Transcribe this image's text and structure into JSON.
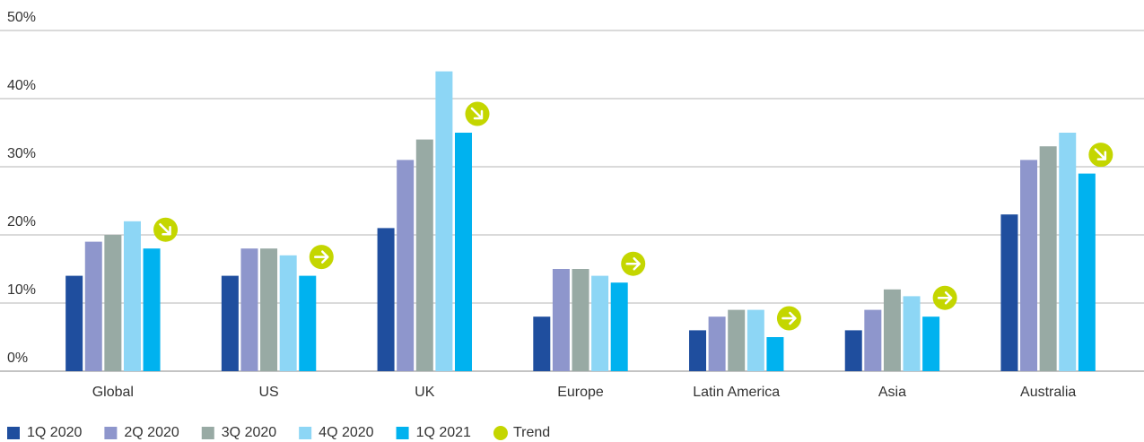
{
  "chart_data": {
    "type": "bar",
    "categories": [
      "Global",
      "US",
      "UK",
      "Europe",
      "Latin America",
      "Asia",
      "Australia"
    ],
    "series": [
      {
        "name": "1Q 2020",
        "color": "#1f4e9e",
        "values": [
          14,
          14,
          21,
          8,
          6,
          6,
          23
        ]
      },
      {
        "name": "2Q 2020",
        "color": "#8e96cc",
        "values": [
          19,
          18,
          31,
          15,
          8,
          9,
          31
        ]
      },
      {
        "name": "3Q 2020",
        "color": "#98aaa4",
        "values": [
          20,
          18,
          34,
          15,
          9,
          12,
          33
        ]
      },
      {
        "name": "4Q 2020",
        "color": "#8dd6f5",
        "values": [
          22,
          17,
          44,
          14,
          9,
          11,
          35
        ]
      },
      {
        "name": "1Q 2021",
        "color": "#00b2ef",
        "values": [
          18,
          14,
          35,
          13,
          5,
          8,
          29
        ]
      }
    ],
    "trend": {
      "name": "Trend",
      "color": "#c4d600",
      "directions": [
        "down-right",
        "right",
        "down-right",
        "right",
        "right",
        "right",
        "down-right"
      ]
    },
    "ylim": [
      0,
      50
    ],
    "yticks": [
      {
        "value": 0,
        "label": "0%"
      },
      {
        "value": 10,
        "label": "10%"
      },
      {
        "value": 20,
        "label": "20%"
      },
      {
        "value": 30,
        "label": "30%"
      },
      {
        "value": 40,
        "label": "40%"
      },
      {
        "value": 50,
        "label": "50%"
      }
    ],
    "grid": true
  }
}
